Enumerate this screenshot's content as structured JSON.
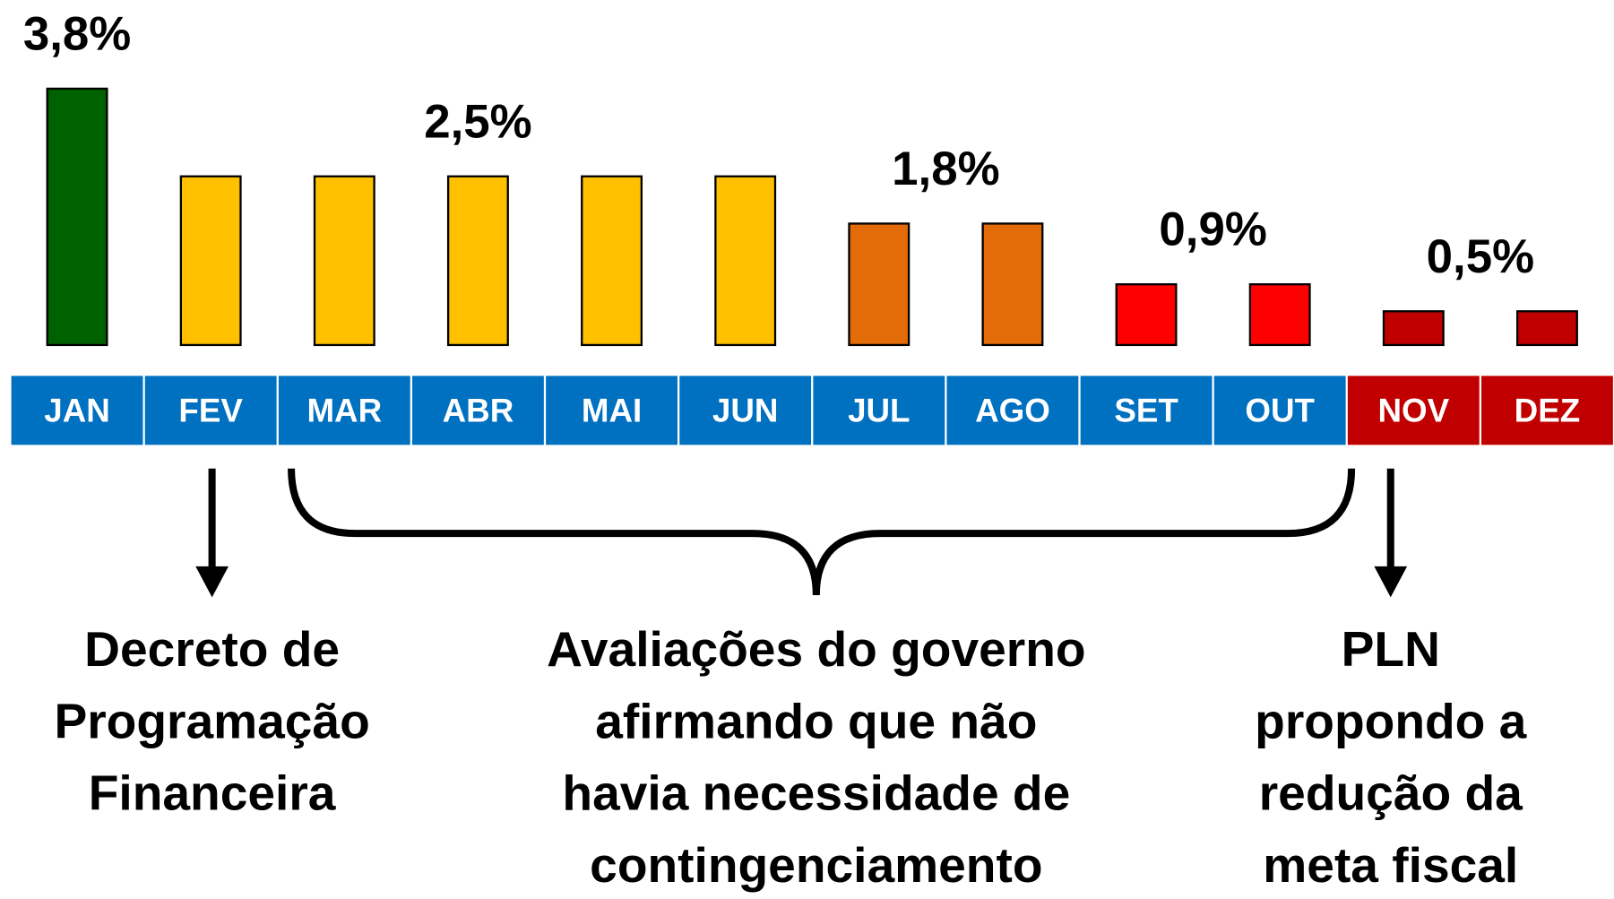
{
  "chart_data": {
    "type": "bar",
    "categories": [
      "JAN",
      "FEV",
      "MAR",
      "ABR",
      "MAI",
      "JUN",
      "JUL",
      "AGO",
      "SET",
      "OUT",
      "NOV",
      "DEZ"
    ],
    "values": [
      3.8,
      2.5,
      2.5,
      2.5,
      2.5,
      2.5,
      1.8,
      1.8,
      0.9,
      0.9,
      0.5,
      0.5
    ],
    "value_labels": [
      "3,8%",
      null,
      null,
      "2,5%",
      null,
      null,
      "1,8%",
      null,
      "0,9%",
      null,
      "0,5%",
      null
    ],
    "colors": [
      "#006100",
      "#ffc000",
      "#ffc000",
      "#ffc000",
      "#ffc000",
      "#ffc000",
      "#e36c09",
      "#e36c09",
      "#ff0000",
      "#ff0000",
      "#c00000",
      "#c00000"
    ],
    "category_colors": [
      "#0070c0",
      "#0070c0",
      "#0070c0",
      "#0070c0",
      "#0070c0",
      "#0070c0",
      "#0070c0",
      "#0070c0",
      "#0070c0",
      "#0070c0",
      "#c00000",
      "#c00000"
    ],
    "annotations": [
      {
        "lines": [
          "Decreto de",
          "Programação",
          "Financeira"
        ]
      },
      {
        "lines": [
          "Avaliações do governo",
          "afirmando que não",
          "havia necessidade de",
          "contingenciamento"
        ]
      },
      {
        "lines": [
          "PLN",
          "propondo a",
          "redução da",
          "meta fiscal"
        ]
      }
    ]
  }
}
